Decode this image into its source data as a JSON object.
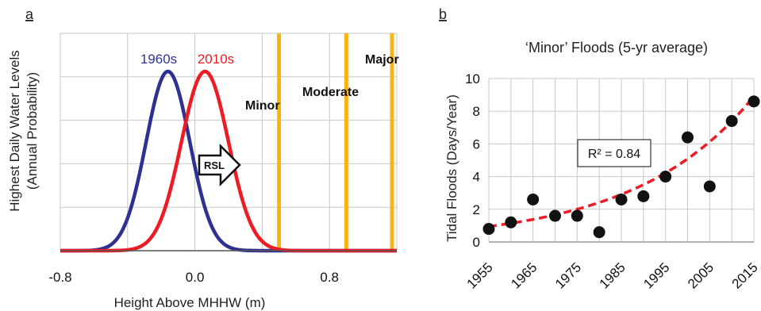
{
  "chart_data": [
    {
      "panel": "a",
      "type": "line",
      "xlabel": "Height Above MHHW (m)",
      "ylabel": [
        "Highest Daily Water Levels",
        "(Annual Probability)"
      ],
      "xlim": [
        -0.8,
        1.2
      ],
      "xticks": [
        "-0.8",
        "0.0",
        "0.8"
      ],
      "xtick_values": [
        -0.8,
        0.0,
        0.8
      ],
      "y_gridlines": 5,
      "grid": true,
      "series": [
        {
          "name": "1960s",
          "type": "gaussian",
          "mean": -0.16,
          "sd": 0.13,
          "color": "#2e3192"
        },
        {
          "name": "2010s",
          "type": "gaussian",
          "mean": 0.06,
          "sd": 0.14,
          "color": "#ed1c24"
        }
      ],
      "thresholds": [
        {
          "name": "Minor",
          "x": 0.5,
          "color": "#f9b316"
        },
        {
          "name": "Moderate",
          "x": 0.9,
          "color": "#f9b316"
        },
        {
          "name": "Major",
          "x": 1.2,
          "color": "#f9b316"
        }
      ],
      "annotation": "RSL"
    },
    {
      "panel": "b",
      "type": "scatter",
      "title": "‘Minor’ Floods (5-yr average)",
      "xlabel": "",
      "ylabel": "Tidal Floods (Days/Year)",
      "xlim": [
        1955,
        2015
      ],
      "ylim": [
        0,
        10
      ],
      "xticks": [
        "1955",
        "1965",
        "1975",
        "1985",
        "1995",
        "2005",
        "2015"
      ],
      "xtick_values": [
        1955,
        1965,
        1975,
        1985,
        1995,
        2005,
        2015
      ],
      "yticks": [
        "0",
        "2",
        "4",
        "6",
        "8",
        "10"
      ],
      "ytick_values": [
        0,
        2,
        4,
        6,
        8,
        10
      ],
      "grid": true,
      "x": [
        1955,
        1960,
        1965,
        1970,
        1975,
        1980,
        1985,
        1990,
        1995,
        2000,
        2005,
        2010,
        2015
      ],
      "y": [
        0.8,
        1.2,
        2.6,
        1.6,
        1.6,
        0.6,
        2.6,
        2.8,
        4.0,
        6.4,
        3.4,
        7.4,
        8.6
      ],
      "trendline": {
        "type": "exponential",
        "a": 0.95,
        "b": 0.0373,
        "x0": 1955,
        "color": "#ed1c24",
        "style": "dashed"
      },
      "annotation": "R² = 0.84"
    }
  ],
  "colors": {
    "threshold": "#f9b316",
    "grid": "#c8c8c8",
    "axis": "#888888",
    "point": "#111111"
  }
}
